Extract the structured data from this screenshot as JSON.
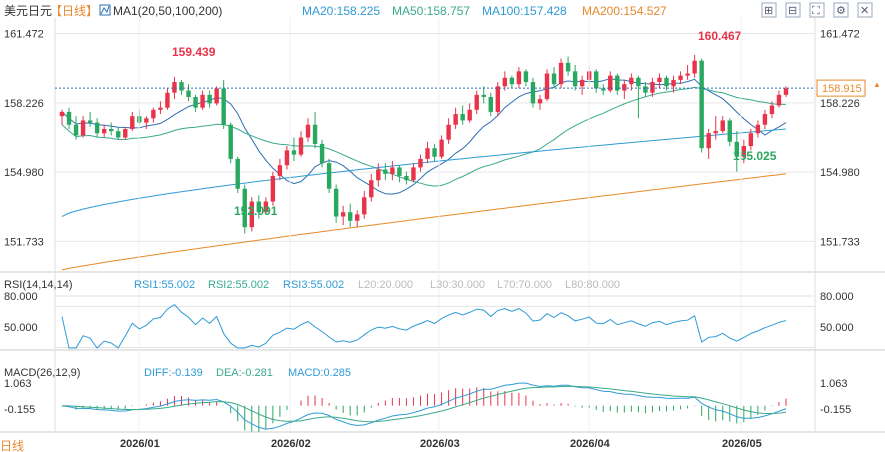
{
  "header": {
    "symbol": "美元日元",
    "period_tag": "【日线】",
    "ma_title": "MA1(20,50,100,200)",
    "ma_values": [
      {
        "text": "MA20:158.225",
        "color": "#2e9bd6"
      },
      {
        "text": "MA50:158.757",
        "color": "#3aaa8c"
      },
      {
        "text": "MA100:157.428",
        "color": "#2e9bd6"
      },
      {
        "text": "MA200:154.527",
        "color": "#e8892b"
      }
    ]
  },
  "rsi_header": {
    "title": "RSI(14,14,14)",
    "values": [
      {
        "text": "RSI1:55.002",
        "color": "#2e9bd6"
      },
      {
        "text": "RSI2:55.002",
        "color": "#3aaa8c"
      },
      {
        "text": "RSI3:55.002",
        "color": "#2e9bd6"
      },
      {
        "text": "L20:20.000",
        "color": "#bbbbbb"
      },
      {
        "text": "L30:30.000",
        "color": "#bbbbbb"
      },
      {
        "text": "L70:70.000",
        "color": "#bbbbbb"
      },
      {
        "text": "L80:80.000",
        "color": "#bbbbbb"
      }
    ]
  },
  "macd_header": {
    "title": "MACD(26,12,9)",
    "values": [
      {
        "text": "DIFF:-0.139",
        "color": "#2e9bd6"
      },
      {
        "text": "DEA:-0.281",
        "color": "#3aaa8c"
      },
      {
        "text": "MACD:0.285",
        "color": "#2e9bd6"
      }
    ]
  },
  "toolbar_icons": [
    "zoom-in-icon",
    "zoom-out-icon",
    "expand-icon",
    "settings-icon",
    "close-icon"
  ],
  "bottom_left_text": "日线",
  "current_price_label": "158.915",
  "chart_data": [
    {
      "type": "candlestick",
      "ylim": [
        150.3,
        162.2
      ],
      "yticks": [
        "161.472",
        "158.226",
        "154.980",
        "151.733"
      ],
      "xticks": [
        "2026/01",
        "2026/02",
        "2026/03",
        "2026/04",
        "2026/05"
      ],
      "current_price": 158.915,
      "annotations": [
        {
          "text": "159.439",
          "value": 159.439,
          "kind": "high"
        },
        {
          "text": "152.091",
          "value": 152.091,
          "kind": "low"
        },
        {
          "text": "160.467",
          "value": 160.467,
          "kind": "high"
        },
        {
          "text": "155.025",
          "value": 155.025,
          "kind": "low"
        }
      ],
      "candles": [
        [
          157.6,
          157.9,
          157.2,
          157.8
        ],
        [
          157.8,
          158.0,
          157.0,
          157.2
        ],
        [
          157.2,
          157.6,
          156.5,
          156.7
        ],
        [
          156.7,
          157.6,
          156.6,
          157.4
        ],
        [
          157.4,
          157.8,
          157.1,
          157.3
        ],
        [
          157.3,
          157.5,
          156.6,
          156.8
        ],
        [
          156.8,
          157.2,
          156.6,
          157.0
        ],
        [
          157.0,
          157.3,
          156.7,
          156.9
        ],
        [
          156.9,
          157.1,
          156.5,
          156.6
        ],
        [
          156.6,
          157.1,
          156.5,
          157.0
        ],
        [
          157.0,
          157.8,
          156.9,
          157.6
        ],
        [
          157.6,
          157.9,
          157.2,
          157.3
        ],
        [
          157.3,
          157.6,
          157.0,
          157.5
        ],
        [
          157.5,
          158.0,
          157.3,
          157.9
        ],
        [
          157.9,
          158.3,
          157.7,
          158.0
        ],
        [
          158.0,
          158.9,
          157.9,
          158.7
        ],
        [
          158.7,
          159.44,
          158.4,
          159.2
        ],
        [
          159.2,
          159.3,
          158.6,
          158.8
        ],
        [
          158.8,
          159.1,
          158.3,
          158.5
        ],
        [
          158.5,
          158.6,
          157.8,
          158.0
        ],
        [
          158.0,
          158.8,
          157.9,
          158.6
        ],
        [
          158.6,
          158.8,
          158.0,
          158.2
        ],
        [
          158.2,
          159.0,
          158.1,
          158.9
        ],
        [
          158.9,
          159.3,
          157.0,
          157.2
        ],
        [
          157.2,
          157.3,
          155.4,
          155.6
        ],
        [
          155.6,
          155.7,
          154.0,
          154.2
        ],
        [
          154.2,
          154.4,
          152.1,
          152.4
        ],
        [
          152.4,
          153.8,
          152.2,
          153.6
        ],
        [
          153.6,
          153.9,
          152.8,
          153.1
        ],
        [
          153.1,
          153.8,
          153.0,
          153.6
        ],
        [
          153.6,
          155.0,
          153.4,
          154.8
        ],
        [
          154.8,
          155.6,
          154.6,
          155.3
        ],
        [
          155.3,
          156.2,
          155.1,
          156.0
        ],
        [
          156.0,
          156.6,
          155.5,
          155.8
        ],
        [
          155.8,
          156.9,
          155.7,
          156.6
        ],
        [
          156.6,
          157.5,
          156.4,
          157.2
        ],
        [
          157.2,
          157.8,
          156.1,
          156.3
        ],
        [
          156.3,
          156.5,
          155.2,
          155.4
        ],
        [
          155.4,
          155.6,
          154.0,
          154.2
        ],
        [
          154.2,
          154.4,
          152.6,
          152.9
        ],
        [
          152.9,
          153.4,
          152.5,
          153.1
        ],
        [
          153.1,
          153.5,
          152.4,
          152.7
        ],
        [
          152.7,
          153.2,
          152.4,
          153.0
        ],
        [
          153.0,
          154.1,
          152.8,
          153.8
        ],
        [
          153.8,
          154.9,
          153.6,
          154.6
        ],
        [
          154.6,
          155.4,
          154.3,
          155.1
        ],
        [
          155.1,
          155.4,
          154.6,
          154.9
        ],
        [
          154.9,
          155.5,
          154.6,
          155.2
        ],
        [
          155.2,
          155.3,
          154.5,
          154.8
        ],
        [
          154.8,
          155.0,
          154.4,
          154.6
        ],
        [
          154.6,
          155.4,
          154.5,
          155.2
        ],
        [
          155.2,
          155.8,
          155.0,
          155.6
        ],
        [
          155.6,
          156.4,
          155.4,
          156.1
        ],
        [
          156.1,
          156.3,
          155.5,
          155.7
        ],
        [
          155.7,
          156.7,
          155.6,
          156.5
        ],
        [
          156.5,
          157.5,
          156.3,
          157.2
        ],
        [
          157.2,
          158.0,
          157.0,
          157.7
        ],
        [
          157.7,
          158.1,
          157.2,
          157.4
        ],
        [
          157.4,
          158.2,
          157.3,
          157.9
        ],
        [
          157.9,
          158.8,
          157.7,
          158.6
        ],
        [
          158.6,
          159.0,
          158.2,
          158.5
        ],
        [
          158.5,
          158.7,
          157.6,
          157.8
        ],
        [
          157.8,
          159.2,
          157.6,
          159.0
        ],
        [
          159.0,
          159.7,
          158.8,
          159.4
        ],
        [
          159.4,
          159.5,
          158.9,
          159.1
        ],
        [
          159.1,
          159.9,
          158.9,
          159.7
        ],
        [
          159.7,
          159.8,
          159.0,
          159.2
        ],
        [
          159.2,
          159.4,
          158.0,
          158.2
        ],
        [
          158.2,
          158.6,
          157.9,
          158.4
        ],
        [
          158.4,
          159.8,
          158.3,
          159.6
        ],
        [
          159.6,
          159.9,
          158.9,
          159.1
        ],
        [
          159.1,
          160.3,
          158.9,
          160.1
        ],
        [
          160.1,
          160.4,
          159.5,
          159.7
        ],
        [
          159.7,
          160.0,
          158.8,
          159.0
        ],
        [
          159.0,
          159.5,
          158.6,
          159.3
        ],
        [
          159.3,
          159.9,
          159.1,
          159.7
        ],
        [
          159.7,
          159.8,
          158.7,
          158.9
        ],
        [
          158.9,
          159.1,
          158.6,
          158.8
        ],
        [
          158.8,
          159.7,
          158.7,
          159.5
        ],
        [
          159.5,
          159.6,
          158.6,
          158.8
        ],
        [
          158.8,
          159.3,
          158.4,
          159.1
        ],
        [
          159.1,
          159.6,
          158.8,
          159.4
        ],
        [
          159.4,
          159.5,
          157.5,
          159.0
        ],
        [
          159.0,
          159.2,
          158.5,
          158.7
        ],
        [
          158.7,
          159.4,
          158.5,
          159.2
        ],
        [
          159.2,
          159.6,
          158.9,
          159.4
        ],
        [
          159.4,
          159.5,
          158.8,
          159.0
        ],
        [
          159.0,
          159.5,
          158.7,
          159.3
        ],
        [
          159.3,
          159.7,
          159.1,
          159.5
        ],
        [
          159.5,
          160.0,
          159.3,
          159.6
        ],
        [
          159.6,
          160.47,
          159.4,
          160.2
        ],
        [
          160.2,
          160.3,
          155.9,
          156.1
        ],
        [
          156.1,
          157.0,
          155.6,
          156.8
        ],
        [
          156.8,
          157.6,
          156.5,
          156.9
        ],
        [
          156.9,
          157.6,
          156.8,
          157.4
        ],
        [
          157.4,
          157.5,
          156.2,
          156.4
        ],
        [
          156.4,
          156.9,
          155.0,
          155.7
        ],
        [
          155.7,
          156.5,
          155.4,
          156.2
        ],
        [
          156.2,
          157.0,
          156.0,
          156.8
        ],
        [
          156.8,
          157.4,
          156.6,
          157.2
        ],
        [
          157.2,
          157.9,
          157.0,
          157.7
        ],
        [
          157.7,
          158.3,
          157.5,
          158.1
        ],
        [
          158.1,
          158.8,
          158.0,
          158.6
        ],
        [
          158.6,
          159.0,
          158.5,
          158.9
        ]
      ]
    },
    {
      "type": "line",
      "name": "RSI",
      "ylim": [
        0,
        100
      ],
      "yticks": [
        "80.000",
        "50.000"
      ],
      "levels": [
        20,
        30,
        70,
        80
      ]
    },
    {
      "type": "bar",
      "name": "MACD",
      "yticks": [
        "1.063",
        "-0.155"
      ],
      "ylim": [
        -1.8,
        1.7
      ]
    }
  ]
}
